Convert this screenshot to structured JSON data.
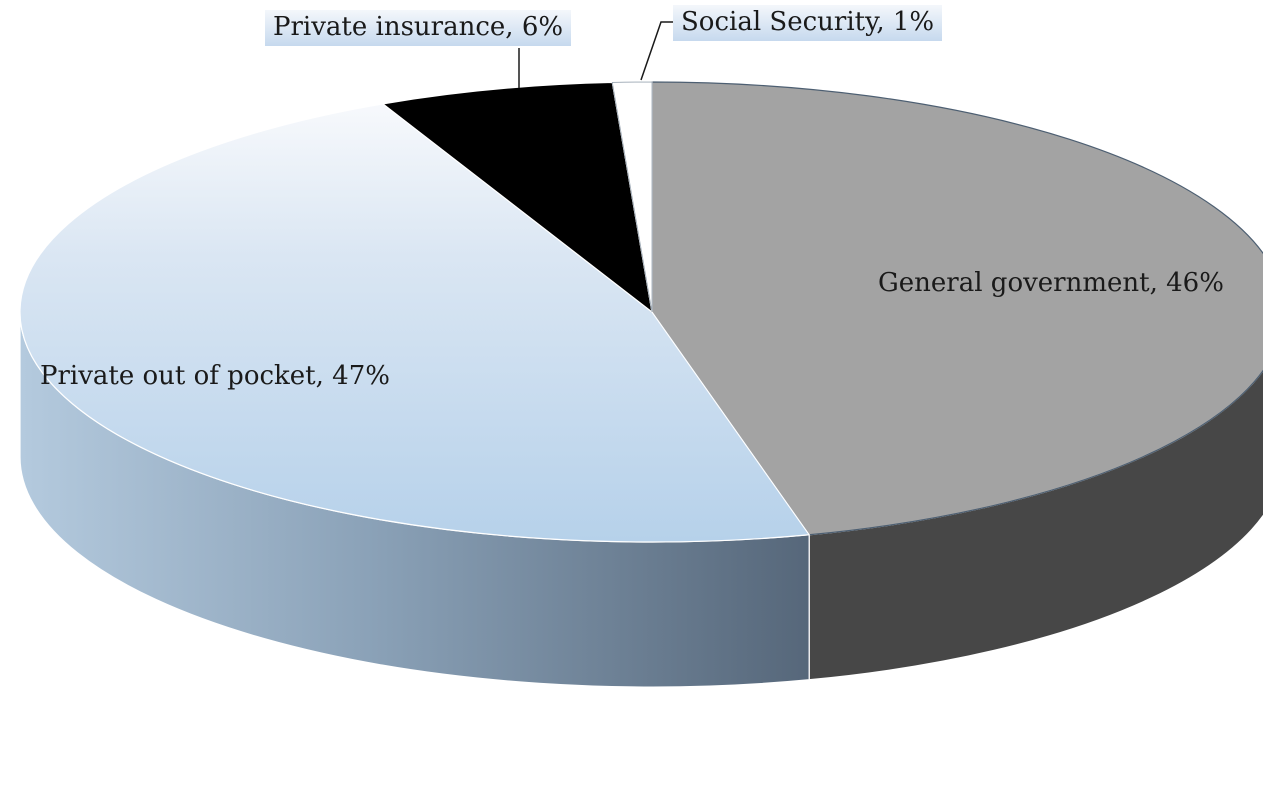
{
  "chart_data": {
    "type": "pie",
    "title": "",
    "slices": [
      {
        "label": "General government",
        "value": 46,
        "color": "#a3a3a3",
        "side_color": "#474747"
      },
      {
        "label": "Private out of pocket",
        "value": 47,
        "color": "#b8d2ea",
        "side_color": "#8fa6bc"
      },
      {
        "label": "Private insurance",
        "value": 6,
        "color": "#000000",
        "side_color": "#000000"
      },
      {
        "label": "Social Security",
        "value": 1,
        "color": "#ffffff",
        "side_color": "#ffffff"
      }
    ],
    "data_labels": [
      "General government, 46%",
      "Private out of pocket, 47%",
      "Private insurance, 6%",
      "Social Security, 1%"
    ],
    "legend": "none",
    "style": "3d"
  }
}
